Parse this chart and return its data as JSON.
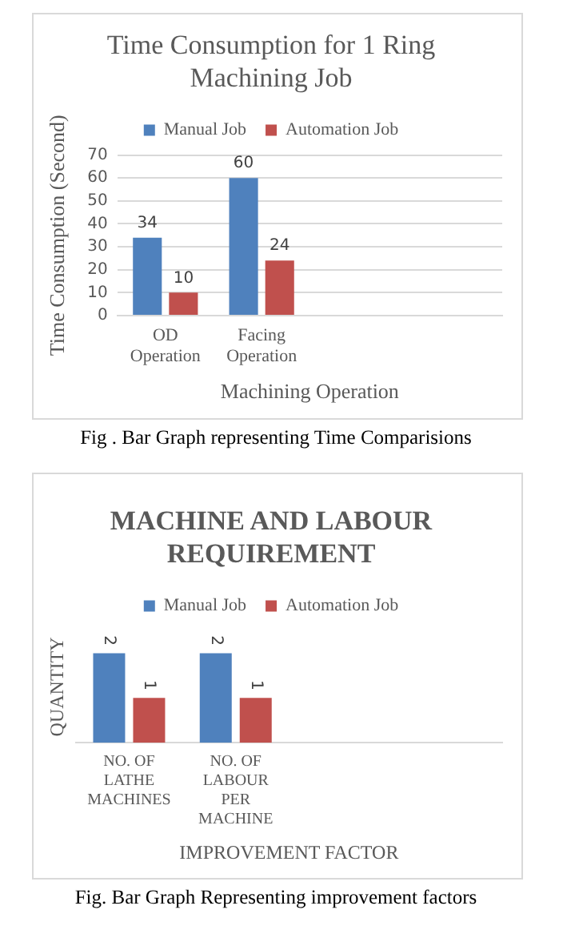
{
  "chart_data": [
    {
      "type": "bar",
      "title": "Time Consumption for 1 Ring Machining Job",
      "xlabel": "Machining Operation",
      "ylabel": "Time Consumption (Second)",
      "categories": [
        "OD Operation",
        "Facing Operation",
        null,
        null
      ],
      "series": [
        {
          "name": "Manual Job",
          "color": "#4f81bd",
          "values": [
            34,
            60,
            null,
            null
          ]
        },
        {
          "name": "Automation Job",
          "color": "#c0504d",
          "values": [
            10,
            24,
            null,
            null
          ]
        }
      ],
      "ylim": [
        0,
        70
      ],
      "yticks": [
        0,
        10,
        20,
        30,
        40,
        50,
        60,
        70
      ],
      "grid": "y",
      "legend": "top",
      "data_labels": true,
      "annotations": [
        "Fig .   Bar Graph representing Time Comparisions"
      ]
    },
    {
      "type": "bar",
      "title": "MACHINE AND LABOUR REQUIREMENT",
      "xlabel": "IMPROVEMENT FACTOR",
      "ylabel": "QUANTITY",
      "categories": [
        "NO. OF LATHE MACHINES",
        "NO. OF LABOUR PER MACHINE",
        null,
        null
      ],
      "series": [
        {
          "name": "Manual Job",
          "color": "#4f81bd",
          "values": [
            2,
            2,
            null,
            null
          ]
        },
        {
          "name": "Automation Job",
          "color": "#c0504d",
          "values": [
            1,
            1,
            null,
            null
          ]
        }
      ],
      "tick_labels": "x",
      "legend": "top",
      "data_labels": true,
      "annotations": [
        "Fig.  Bar Graph Representing improvement factors"
      ]
    }
  ]
}
